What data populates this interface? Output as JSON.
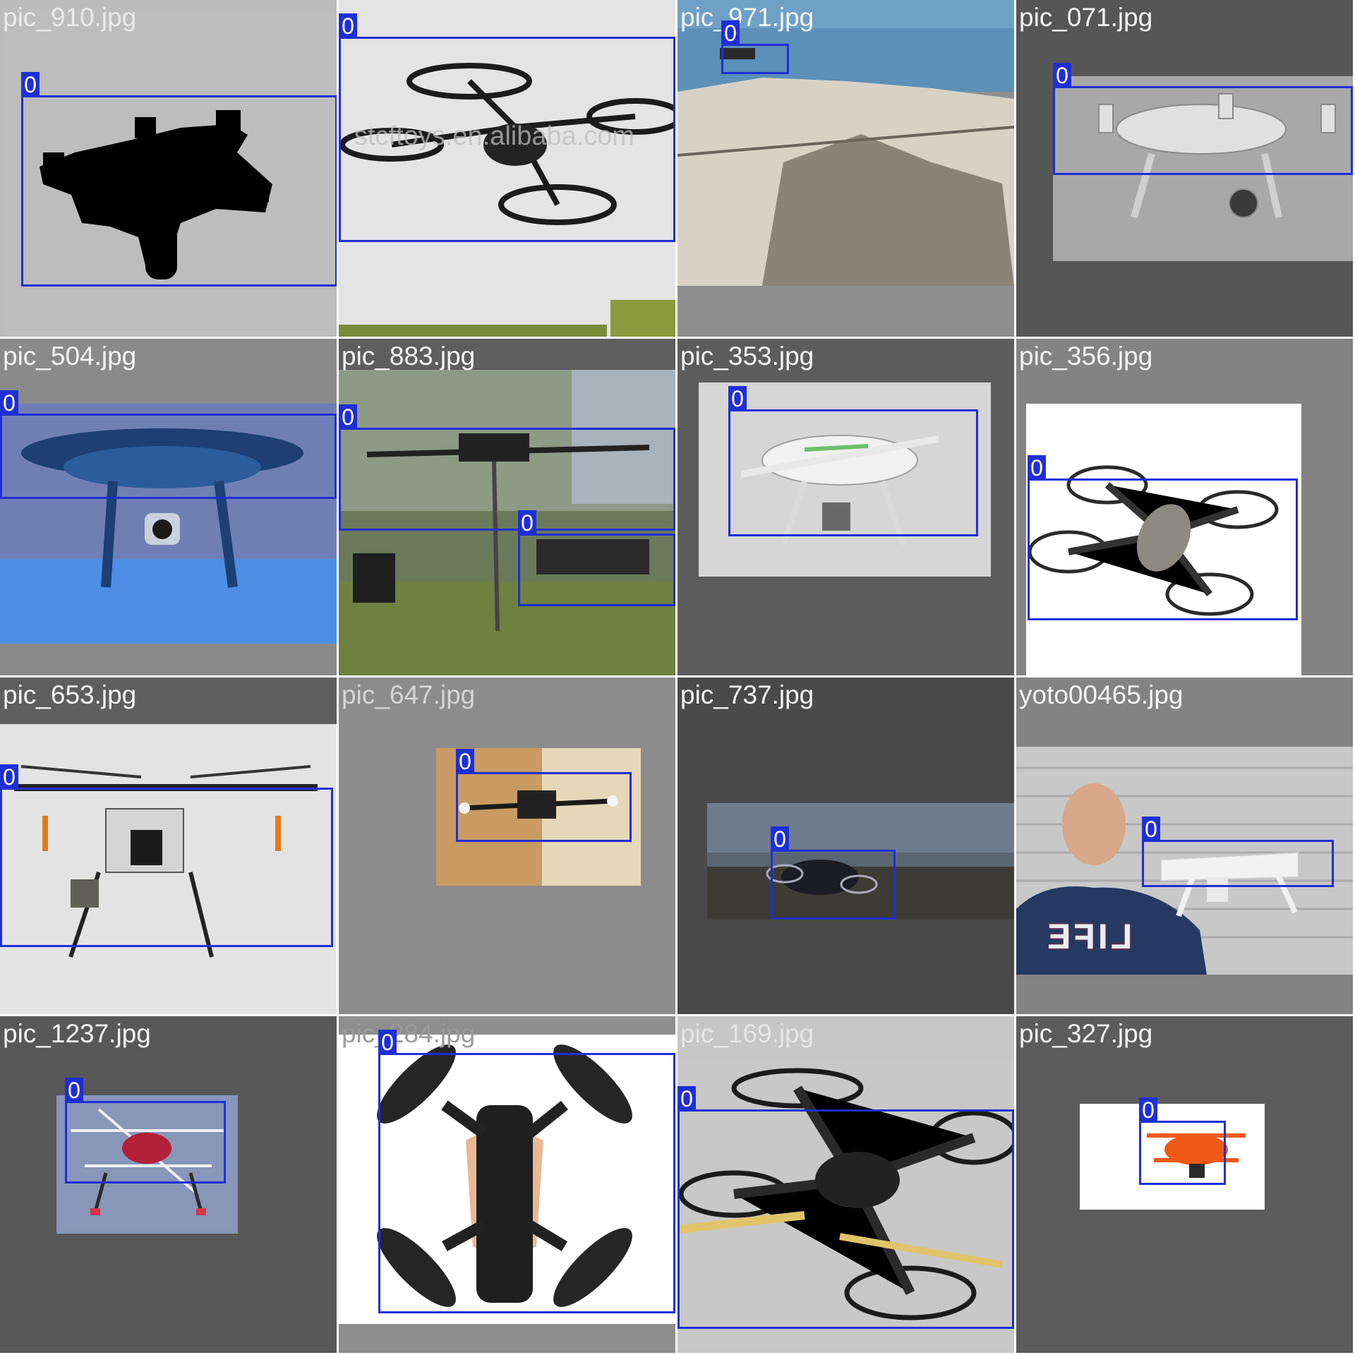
{
  "tiles": [
    {
      "filename": "pic_910.jpg",
      "box_label": "0"
    },
    {
      "filename": "",
      "box_label": "0",
      "watermark": "stcftoys.en.alibaba.com"
    },
    {
      "filename": "pic_971.jpg",
      "box_label": "0"
    },
    {
      "filename": "pic_071.jpg",
      "box_label": "0"
    },
    {
      "filename": "pic_504.jpg",
      "box_label": "0"
    },
    {
      "filename": "pic_883.jpg",
      "box_label": "0"
    },
    {
      "filename": "pic_353.jpg",
      "box_label": "0"
    },
    {
      "filename": "pic_356.jpg",
      "box_label": "0"
    },
    {
      "filename": "pic_653.jpg",
      "box_label": "0"
    },
    {
      "filename": "pic_647.jpg",
      "box_label": "0"
    },
    {
      "filename": "pic_737.jpg",
      "box_label": "0"
    },
    {
      "filename": "yoto00465.jpg",
      "box_label": "0",
      "shirt_text": "LIFE"
    },
    {
      "filename": "pic_1237.jpg",
      "box_label": "0"
    },
    {
      "filename": "pic_284.jpg",
      "box_label": "0"
    },
    {
      "filename": "pic_169.jpg",
      "box_label": "0"
    },
    {
      "filename": "pic_327.jpg",
      "box_label": "0"
    }
  ],
  "colors": {
    "box": "#1f2fd6",
    "label_text": "#ffffff",
    "filename_text": "#f4f4f4"
  }
}
